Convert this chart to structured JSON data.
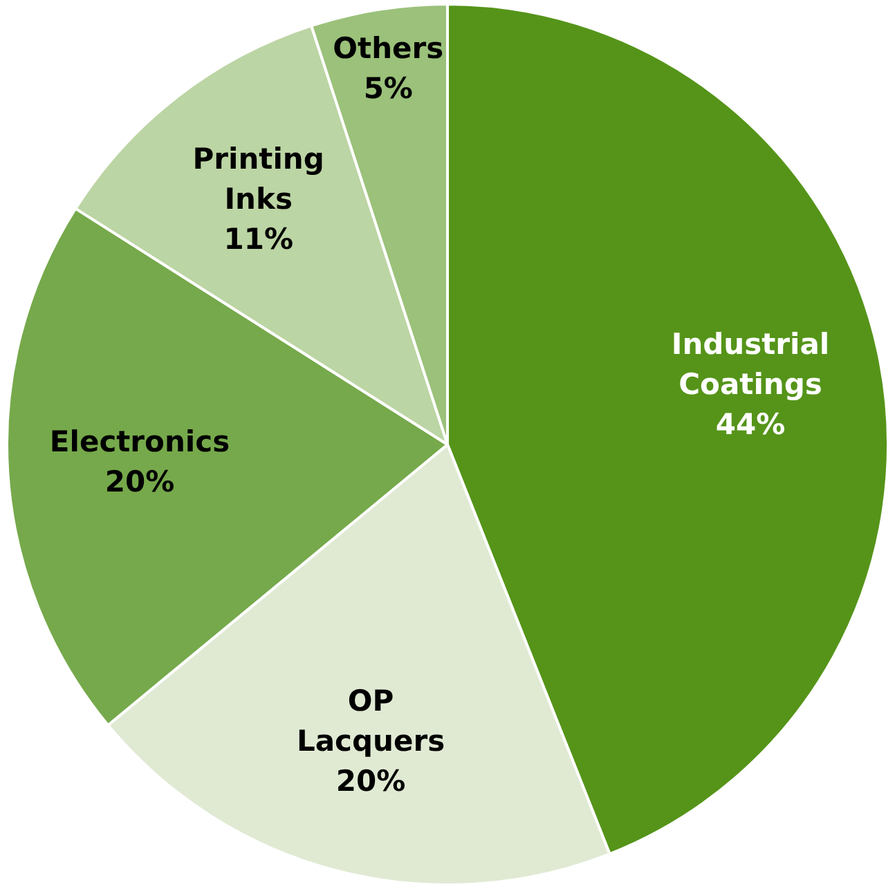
{
  "chart_data": {
    "type": "pie",
    "categories": [
      "Industrial Coatings",
      "OP Lacquers",
      "Electronics",
      "Printing Inks",
      "Others"
    ],
    "values": [
      44,
      20,
      20,
      11,
      5
    ],
    "value_labels": [
      "44%",
      "20%",
      "20%",
      "11%",
      "5%"
    ],
    "colors": [
      "#559419",
      "#e0ead3",
      "#76a94b",
      "#bcd5a4",
      "#9bc17a"
    ],
    "legend": false
  }
}
